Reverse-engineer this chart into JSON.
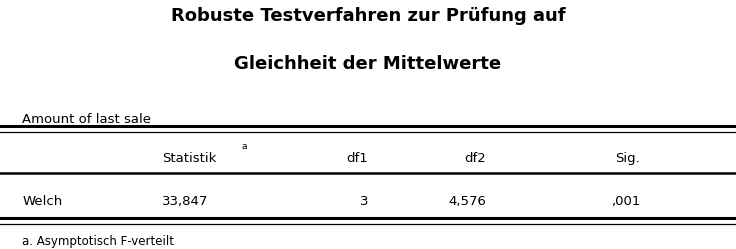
{
  "title_line1": "Robuste Testverfahren zur Prüfung auf",
  "title_line2": "Gleichheit der Mittelwerte",
  "subtitle": "Amount of last sale",
  "col_headers": [
    "",
    "Statistik",
    "df1",
    "df2",
    "Sig."
  ],
  "row_data": [
    [
      "Welch",
      "33,847",
      "3",
      "4,576",
      ",001"
    ]
  ],
  "footnote": "a. Asymptotisch F-verteilt",
  "bg_color": "#ffffff",
  "text_color": "#000000"
}
